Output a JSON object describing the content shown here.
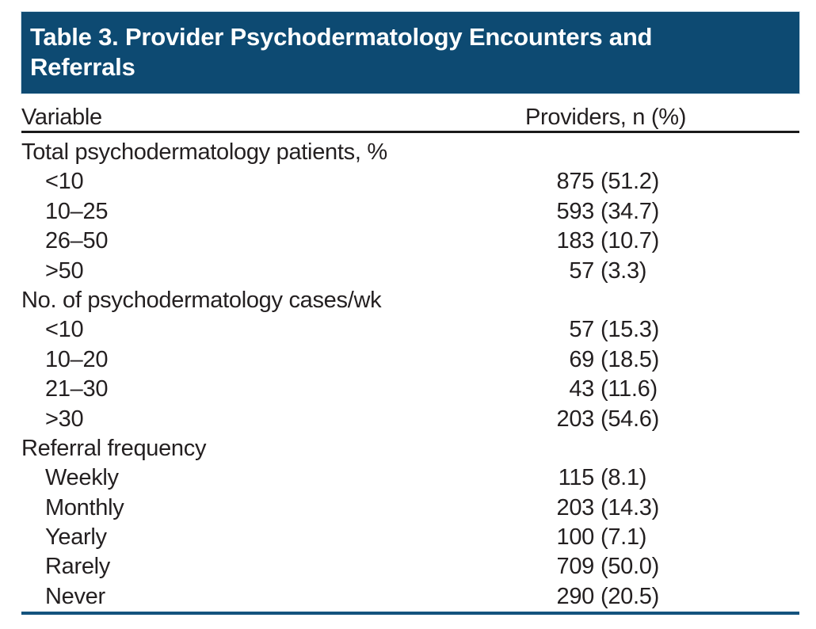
{
  "title": "Table 3. Provider Psychodermatology Encounters and Referrals",
  "columns": {
    "variable": "Variable",
    "providers": "Providers, n (%)"
  },
  "rows": [
    {
      "type": "section",
      "label": "Total psychodermatology patients, %",
      "n": "",
      "pct": ""
    },
    {
      "type": "item",
      "label": "<10",
      "n": "875",
      "pct": "(51.2)"
    },
    {
      "type": "item",
      "label": "10–25",
      "n": "593",
      "pct": "(34.7)"
    },
    {
      "type": "item",
      "label": "26–50",
      "n": "183",
      "pct": "(10.7)"
    },
    {
      "type": "item",
      "label": ">50",
      "n": "57",
      "pct": "(3.3)"
    },
    {
      "type": "section",
      "label": "No. of psychodermatology cases/wk",
      "n": "",
      "pct": ""
    },
    {
      "type": "item",
      "label": "<10",
      "n": "57",
      "pct": "(15.3)"
    },
    {
      "type": "item",
      "label": "10–20",
      "n": "69",
      "pct": "(18.5)"
    },
    {
      "type": "item",
      "label": "21–30",
      "n": "43",
      "pct": "(11.6)"
    },
    {
      "type": "item",
      "label": ">30",
      "n": "203",
      "pct": "(54.6)"
    },
    {
      "type": "section",
      "label": "Referral frequency",
      "n": "",
      "pct": ""
    },
    {
      "type": "item",
      "label": "Weekly",
      "n": "115",
      "pct": "(8.1)"
    },
    {
      "type": "item",
      "label": "Monthly",
      "n": "203",
      "pct": "(14.3)"
    },
    {
      "type": "item",
      "label": "Yearly",
      "n": "100",
      "pct": "(7.1)"
    },
    {
      "type": "item",
      "label": "Rarely",
      "n": "709",
      "pct": "(50.0)"
    },
    {
      "type": "item",
      "label": "Never",
      "n": "290",
      "pct": "(20.5)"
    }
  ],
  "colors": {
    "banner_background": "#0d4a72",
    "banner_text": "#ffffff",
    "header_rule": "#1a1a1a",
    "bottom_rule": "#14537e",
    "body_text": "#231f20"
  }
}
